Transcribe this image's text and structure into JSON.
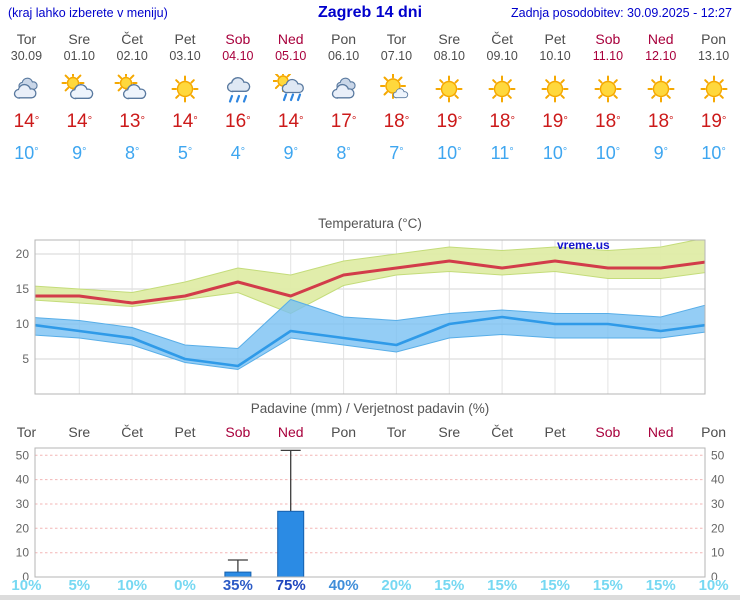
{
  "header": {
    "note": "(kraj lahko izberete v meniju)",
    "title": "Zagreb 14 dni",
    "updated": "Zadnja posodobitev: 30.09.2025 - 12:27"
  },
  "symbols": {
    "degree": "°"
  },
  "colors": {
    "link_blue": "#0000cc",
    "day_gray": "#4d4d4d",
    "weekend_red": "#a8003c",
    "high_red": "#cc1a1a",
    "low_blue": "#3ea6f0",
    "line_red": "#d23c4a",
    "line_blue": "#2f9ae8",
    "band_yellow": "#dfeca6",
    "band_blue": "#79c0f2",
    "bar_blue": "#2b8be4",
    "watermark_blue": "#1414cc"
  },
  "days": [
    {
      "name": "Tor",
      "date": "30.09",
      "weekend": false,
      "icon": "cloudy",
      "high": "14",
      "low": "10"
    },
    {
      "name": "Sre",
      "date": "01.10",
      "weekend": false,
      "icon": "partly-cloudy",
      "high": "14",
      "low": "9"
    },
    {
      "name": "Čet",
      "date": "02.10",
      "weekend": false,
      "icon": "partly-cloudy",
      "high": "13",
      "low": "8"
    },
    {
      "name": "Pet",
      "date": "03.10",
      "weekend": false,
      "icon": "sunny",
      "high": "14",
      "low": "5"
    },
    {
      "name": "Sob",
      "date": "04.10",
      "weekend": true,
      "icon": "rain",
      "high": "16",
      "low": "4"
    },
    {
      "name": "Ned",
      "date": "05.10",
      "weekend": true,
      "icon": "sun-rain",
      "high": "14",
      "low": "9"
    },
    {
      "name": "Pon",
      "date": "06.10",
      "weekend": false,
      "icon": "cloudy",
      "high": "17",
      "low": "8"
    },
    {
      "name": "Tor",
      "date": "07.10",
      "weekend": false,
      "icon": "mostly-sunny",
      "high": "18",
      "low": "7"
    },
    {
      "name": "Sre",
      "date": "08.10",
      "weekend": false,
      "icon": "sunny",
      "high": "19",
      "low": "10"
    },
    {
      "name": "Čet",
      "date": "09.10",
      "weekend": false,
      "icon": "sunny",
      "high": "18",
      "low": "11"
    },
    {
      "name": "Pet",
      "date": "10.10",
      "weekend": false,
      "icon": "sunny",
      "high": "19",
      "low": "10"
    },
    {
      "name": "Sob",
      "date": "11.10",
      "weekend": true,
      "icon": "sunny",
      "high": "18",
      "low": "10"
    },
    {
      "name": "Ned",
      "date": "12.10",
      "weekend": true,
      "icon": "sunny",
      "high": "18",
      "low": "9"
    },
    {
      "name": "Pon",
      "date": "13.10",
      "weekend": false,
      "icon": "sunny",
      "high": "19",
      "low": "10"
    }
  ],
  "chart_data": [
    {
      "type": "line",
      "title": "Temperatura (°C)",
      "watermark": "vreme.us",
      "categories": [
        "Tor 30.09",
        "Sre 01.10",
        "Čet 02.10",
        "Pet 03.10",
        "Sob 04.10",
        "Ned 05.10",
        "Pon 06.10",
        "Tor 07.10",
        "Sre 08.10",
        "Čet 09.10",
        "Pet 10.10",
        "Sob 11.10",
        "Ned 12.10",
        "Pon 13.10"
      ],
      "ylim": [
        0,
        22
      ],
      "yticks": [
        5,
        10,
        15,
        20
      ],
      "grid": true,
      "legend": "none",
      "series": [
        {
          "name": "max",
          "color": "#d23c4a",
          "values": [
            14,
            14,
            13,
            14,
            16,
            14,
            17,
            18,
            19,
            18,
            19,
            18,
            18,
            19
          ]
        },
        {
          "name": "min",
          "color": "#2f9ae8",
          "values": [
            10,
            9,
            8,
            5,
            4,
            9,
            8,
            7,
            10,
            11,
            10,
            10,
            9,
            10
          ]
        },
        {
          "name": "max_band_upper",
          "values": [
            15.5,
            15,
            14.5,
            16,
            18,
            17,
            19,
            20,
            21,
            20.5,
            21,
            20.5,
            21,
            22.5
          ]
        },
        {
          "name": "max_band_lower",
          "values": [
            13.5,
            13,
            12.5,
            13.5,
            14.5,
            11.5,
            15.5,
            17,
            17.5,
            17,
            17.5,
            16.5,
            16.5,
            17.5
          ]
        },
        {
          "name": "min_band_upper",
          "values": [
            11,
            10.5,
            9.5,
            7,
            6.5,
            13.5,
            11,
            10.5,
            11.5,
            12,
            11.5,
            11.5,
            11,
            13
          ]
        },
        {
          "name": "min_band_lower",
          "values": [
            8.5,
            8,
            7,
            4.5,
            3.5,
            8,
            7,
            6,
            8,
            8.5,
            8,
            8,
            8,
            9
          ]
        }
      ]
    },
    {
      "type": "bar",
      "title": "Padavine (mm) / Verjetnost padavin (%)",
      "categories": [
        "Tor",
        "Sre",
        "Čet",
        "Pet",
        "Sob",
        "Ned",
        "Pon",
        "Tor",
        "Sre",
        "Čet",
        "Pet",
        "Sob",
        "Ned",
        "Pon"
      ],
      "values": [
        0,
        0,
        0,
        0,
        2,
        27,
        0,
        0,
        0,
        0,
        0,
        0,
        0,
        0
      ],
      "whisker_max": [
        0,
        0,
        0,
        0,
        7,
        52,
        0,
        0,
        0,
        0,
        0,
        0,
        0,
        0
      ],
      "probabilities": [
        "10%",
        "5%",
        "10%",
        "0%",
        "35%",
        "75%",
        "40%",
        "20%",
        "15%",
        "15%",
        "15%",
        "15%",
        "15%",
        "10%"
      ],
      "prob_colors": [
        "#76d8f2",
        "#76d8f2",
        "#76d8f2",
        "#76d8f2",
        "#2c5bc6",
        "#1e45bd",
        "#3f8ed9",
        "#76d8f2",
        "#76d8f2",
        "#76d8f2",
        "#76d8f2",
        "#76d8f2",
        "#76d8f2",
        "#76d8f2"
      ],
      "ylim": [
        0,
        53
      ],
      "yticks": [
        0,
        10,
        20,
        30,
        40,
        50
      ]
    }
  ]
}
